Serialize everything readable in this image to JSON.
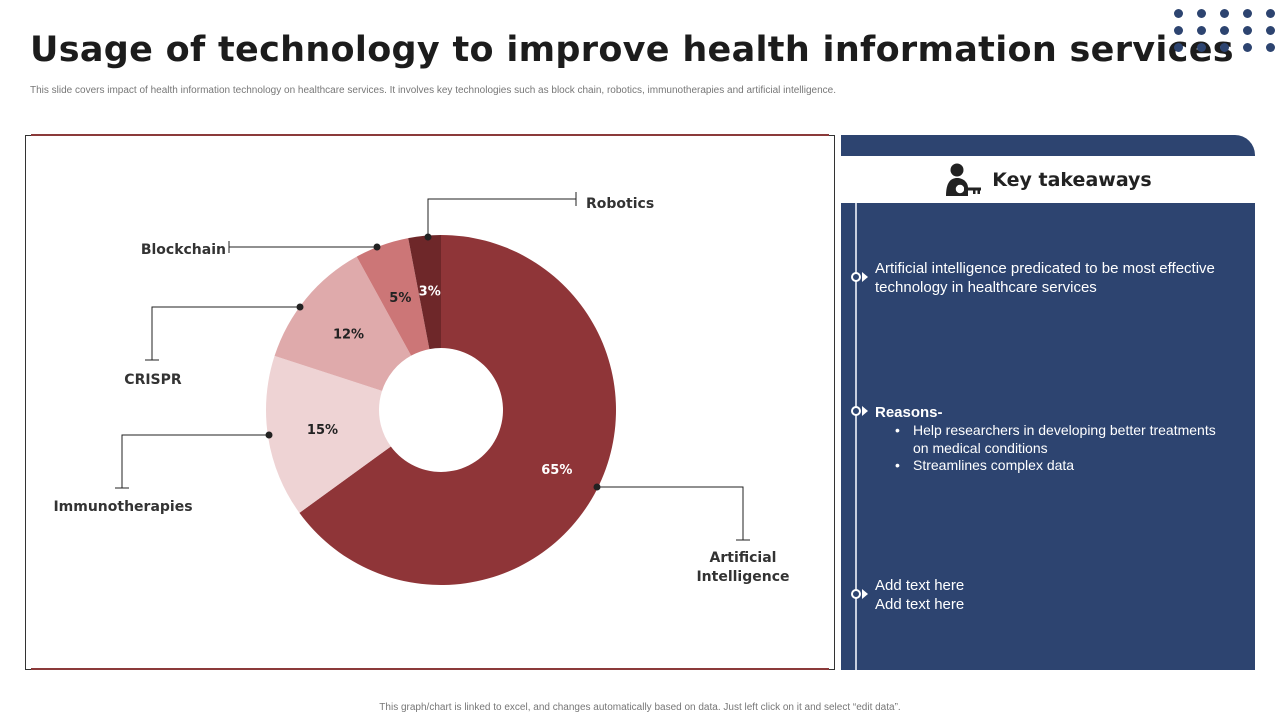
{
  "header": {
    "title": "Usage of technology to improve health information services",
    "subtitle": "This slide covers impact of health information technology on healthcare services. It involves key technologies such as block chain, robotics, immunotherapies and artificial intelligence."
  },
  "colors": {
    "accent": "#2d4470",
    "chart_line": "#8b3a3a"
  },
  "chart_data": {
    "type": "pie",
    "donut": true,
    "unit": "%",
    "slices": [
      {
        "label": "Artificial Intelligence",
        "value": 65,
        "value_label": "65%",
        "color": "#8f3538",
        "label_color": "#ffffff"
      },
      {
        "label": "Immunotherapies",
        "value": 15,
        "value_label": "15%",
        "color": "#eed3d4",
        "label_color": "#222222"
      },
      {
        "label": "CRISPR",
        "value": 12,
        "value_label": "12%",
        "color": "#dfaaab",
        "label_color": "#222222"
      },
      {
        "label": "Blockchain",
        "value": 5,
        "value_label": "5%",
        "color": "#cc7677",
        "label_color": "#222222"
      },
      {
        "label": "Robotics",
        "value": 3,
        "value_label": "3%",
        "color": "#6e2729",
        "label_color": "#ffffff"
      }
    ],
    "order": "clockwise from top"
  },
  "takeaways": {
    "icon": "person-key-icon",
    "title": "Key takeaways",
    "point1": "Artificial intelligence predicated to be most effective technology in healthcare services",
    "reasons_title": "Reasons-",
    "reasons": [
      "Help researchers in developing better treatments on medical conditions",
      "Streamlines complex data"
    ],
    "add_text_1": "Add text here",
    "add_text_2": "Add text here"
  },
  "footer": {
    "note": "This graph/chart is linked to excel, and changes automatically based on data. Just left click on it and select “edit data”."
  }
}
